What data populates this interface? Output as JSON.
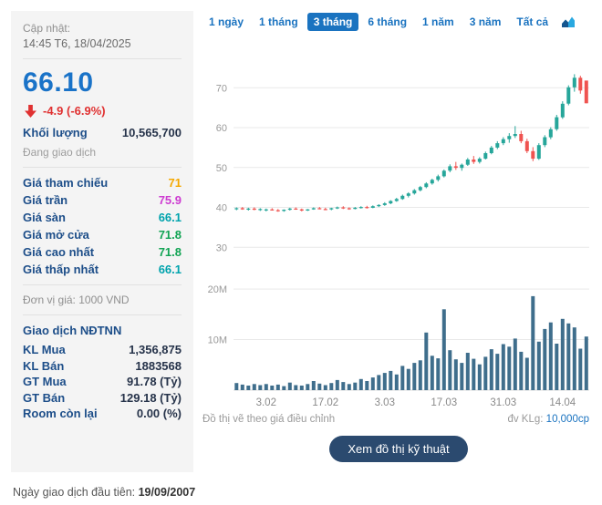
{
  "colors": {
    "price_blue": "#1a73c8",
    "down_red": "#e03131",
    "label_navy": "#1d4e89"
  },
  "left_panel": {
    "updated_label": "Cập nhật:",
    "updated_time": "14:45 T6, 18/04/2025",
    "price": "66.10",
    "change": "-4.9 (-6.9%)",
    "volume_label": "Khối lượng",
    "volume_value": "10,565,700",
    "status": "Đang giao dịch",
    "price_rows": [
      {
        "label": "Giá tham chiếu",
        "value": "71",
        "color": "#f5a800"
      },
      {
        "label": "Giá trần",
        "value": "75.9",
        "color": "#cd3bd1"
      },
      {
        "label": "Giá sàn",
        "value": "66.1",
        "color": "#00a3ad"
      },
      {
        "label": "Giá mở cửa",
        "value": "71.8",
        "color": "#12a454"
      },
      {
        "label": "Giá cao nhất",
        "value": "71.8",
        "color": "#12a454"
      },
      {
        "label": "Giá thấp nhất",
        "value": "66.1",
        "color": "#00a3ad"
      }
    ],
    "unit_note": "Đơn vị giá: 1000 VND",
    "foreign_header": "Giao dịch NĐTNN",
    "foreign_rows": [
      {
        "label": "KL Mua",
        "value": "1,356,875"
      },
      {
        "label": "KL Bán",
        "value": "1883568"
      },
      {
        "label": "GT Mua",
        "value": "91.78 (Tỷ)"
      },
      {
        "label": "GT Bán",
        "value": "129.18 (Tỷ)"
      },
      {
        "label": "Room còn lại",
        "value": "0.00 (%)"
      }
    ]
  },
  "tabs": {
    "items": [
      {
        "label": "1 ngày",
        "selected": false
      },
      {
        "label": "1 tháng",
        "selected": false
      },
      {
        "label": "3 tháng",
        "selected": true
      },
      {
        "label": "6 tháng",
        "selected": false
      },
      {
        "label": "1 năm",
        "selected": false
      },
      {
        "label": "3 năm",
        "selected": false
      },
      {
        "label": "Tất cả",
        "selected": false
      }
    ]
  },
  "chart_footer": {
    "left": "Đồ thị vẽ theo giá điều chỉnh",
    "right_label": "đv KLg:",
    "right_value": "10,000cp"
  },
  "button_label": "Xem đồ thị kỹ thuật",
  "first_day": {
    "label": "Ngày giao dịch đầu tiên:",
    "value": "19/09/2007"
  },
  "chart_data": {
    "type": "candlestick+volume",
    "title": "3-month price & volume chart",
    "price_axis": {
      "min": 28,
      "max": 76,
      "ticks": [
        30,
        40,
        50,
        60,
        70
      ]
    },
    "volume_axis": {
      "unit": "shares (millions)",
      "max_m": 22,
      "ticks_m": [
        10,
        20
      ]
    },
    "x_ticks": [
      {
        "index": 5,
        "label": "3.02"
      },
      {
        "index": 15,
        "label": "17.02"
      },
      {
        "index": 25,
        "label": "3.03"
      },
      {
        "index": 35,
        "label": "17.03"
      },
      {
        "index": 45,
        "label": "31.03"
      },
      {
        "index": 55,
        "label": "14.04"
      }
    ],
    "colors": {
      "up": "#26a69a",
      "down": "#ef5350",
      "volume": "#3f6e8c",
      "grid": "#e9e9e9"
    },
    "candles": [
      [
        39.6,
        40.0,
        39.3,
        39.8
      ],
      [
        39.8,
        40.1,
        39.4,
        39.5
      ],
      [
        39.5,
        39.9,
        39.2,
        39.7
      ],
      [
        39.7,
        40.0,
        39.3,
        39.4
      ],
      [
        39.4,
        39.8,
        39.1,
        39.6
      ],
      [
        39.3,
        39.7,
        39.0,
        39.5
      ],
      [
        39.5,
        39.8,
        39.2,
        39.3
      ],
      [
        39.3,
        39.6,
        38.9,
        39.1
      ],
      [
        39.1,
        39.5,
        38.9,
        39.4
      ],
      [
        39.4,
        39.9,
        39.2,
        39.7
      ],
      [
        39.7,
        40.0,
        39.4,
        39.5
      ],
      [
        39.5,
        39.7,
        39.0,
        39.2
      ],
      [
        39.2,
        39.6,
        39.1,
        39.5
      ],
      [
        39.5,
        40.0,
        39.4,
        39.8
      ],
      [
        39.8,
        40.1,
        39.5,
        39.6
      ],
      [
        39.6,
        39.9,
        39.3,
        39.5
      ],
      [
        39.5,
        39.9,
        39.3,
        39.8
      ],
      [
        39.8,
        40.2,
        39.6,
        40.0
      ],
      [
        40.0,
        40.3,
        39.6,
        39.8
      ],
      [
        39.8,
        40.0,
        39.4,
        39.6
      ],
      [
        39.6,
        40.1,
        39.5,
        39.9
      ],
      [
        39.9,
        40.3,
        39.7,
        40.1
      ],
      [
        40.1,
        40.4,
        39.7,
        39.9
      ],
      [
        39.9,
        40.5,
        39.8,
        40.3
      ],
      [
        40.3,
        40.8,
        40.1,
        40.6
      ],
      [
        40.6,
        41.3,
        40.4,
        41.0
      ],
      [
        41.0,
        41.8,
        40.8,
        41.6
      ],
      [
        41.6,
        42.4,
        41.4,
        42.1
      ],
      [
        42.1,
        43.2,
        41.9,
        42.9
      ],
      [
        42.9,
        43.8,
        42.5,
        43.5
      ],
      [
        43.5,
        44.6,
        43.2,
        44.3
      ],
      [
        44.3,
        45.4,
        44.0,
        45.1
      ],
      [
        45.1,
        46.3,
        44.8,
        46.0
      ],
      [
        46.0,
        47.2,
        45.7,
        46.9
      ],
      [
        46.9,
        48.2,
        46.5,
        47.8
      ],
      [
        47.8,
        49.5,
        47.5,
        49.2
      ],
      [
        49.2,
        50.8,
        48.8,
        50.3
      ],
      [
        50.3,
        51.4,
        49.4,
        49.9
      ],
      [
        49.9,
        51.0,
        49.2,
        50.7
      ],
      [
        50.7,
        52.4,
        50.4,
        52.0
      ],
      [
        52.0,
        52.9,
        50.9,
        51.4
      ],
      [
        51.4,
        52.6,
        51.0,
        52.2
      ],
      [
        52.2,
        54.0,
        52.0,
        53.6
      ],
      [
        53.6,
        55.4,
        53.3,
        55.0
      ],
      [
        55.0,
        56.6,
        54.6,
        56.1
      ],
      [
        56.1,
        57.6,
        55.6,
        57.1
      ],
      [
        57.1,
        58.6,
        56.2,
        57.9
      ],
      [
        57.9,
        60.4,
        57.4,
        58.4
      ],
      [
        58.4,
        59.2,
        56.1,
        56.6
      ],
      [
        56.6,
        57.2,
        53.6,
        54.1
      ],
      [
        54.1,
        55.1,
        51.6,
        52.2
      ],
      [
        52.2,
        56.1,
        51.9,
        55.6
      ],
      [
        55.6,
        58.1,
        55.1,
        57.6
      ],
      [
        57.6,
        60.1,
        57.1,
        59.6
      ],
      [
        59.6,
        63.2,
        59.2,
        62.6
      ],
      [
        62.6,
        66.6,
        62.2,
        66.0
      ],
      [
        66.0,
        70.6,
        65.6,
        70.1
      ],
      [
        70.1,
        73.4,
        69.0,
        72.5
      ],
      [
        72.5,
        73.0,
        68.5,
        69.3
      ],
      [
        71.8,
        71.8,
        66.1,
        66.1
      ]
    ],
    "volumes_m": [
      1.4,
      1.1,
      0.9,
      1.2,
      1.0,
      1.2,
      0.9,
      1.1,
      0.8,
      1.5,
      1.0,
      0.9,
      1.2,
      1.8,
      1.3,
      1.0,
      1.4,
      2.0,
      1.6,
      1.2,
      1.5,
      2.2,
      1.8,
      2.5,
      3.0,
      3.4,
      3.8,
      3.1,
      4.8,
      4.2,
      5.4,
      5.9,
      11.4,
      6.8,
      6.3,
      16.0,
      7.9,
      6.1,
      5.4,
      7.4,
      6.2,
      5.1,
      6.6,
      8.1,
      7.2,
      9.1,
      8.6,
      10.2,
      7.6,
      6.4,
      18.6,
      9.6,
      12.1,
      13.4,
      9.2,
      14.1,
      13.2,
      12.4,
      8.2,
      10.6
    ]
  }
}
